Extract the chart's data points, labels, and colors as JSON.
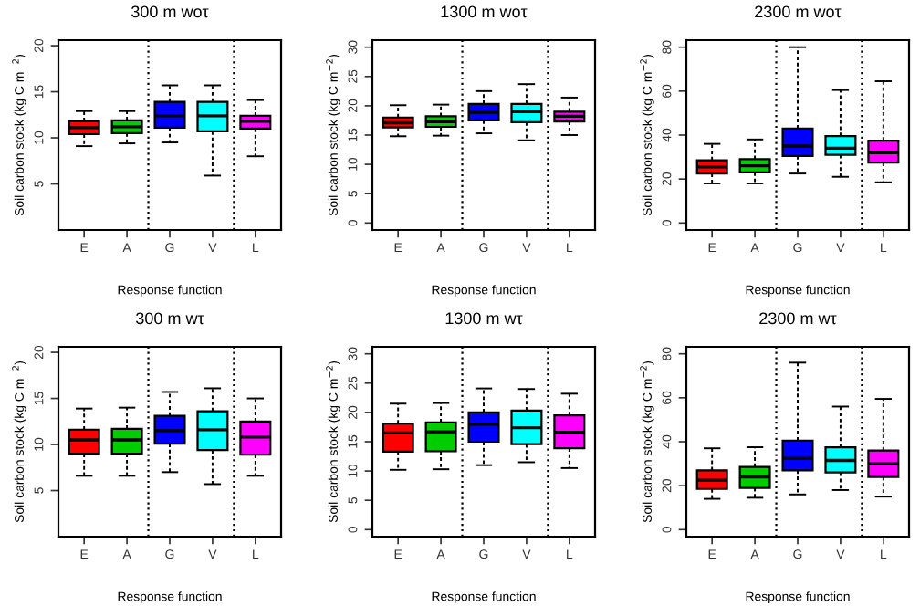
{
  "chart_data": [
    {
      "type": "box",
      "title": "300 m woτ",
      "xlabel": "Response function",
      "ylabel": "Soil carbon stock (kg C m$^{−2}$)",
      "categories": [
        "E",
        "A",
        "G",
        "V",
        "L"
      ],
      "colors": [
        "#ff0000",
        "#00cd00",
        "#0000ff",
        "#00ffff",
        "#ff00ff"
      ],
      "ylim": [
        0,
        20.6
      ],
      "yticks": [
        5,
        10,
        15,
        20
      ],
      "grid": false,
      "boxes": [
        {
          "low": 9.1,
          "q1": 10.4,
          "median": 11.1,
          "q3": 11.8,
          "high": 12.9
        },
        {
          "low": 9.4,
          "q1": 10.5,
          "median": 11.2,
          "q3": 11.9,
          "high": 12.9
        },
        {
          "low": 9.5,
          "q1": 11.1,
          "median": 12.4,
          "q3": 13.9,
          "high": 15.7
        },
        {
          "low": 5.9,
          "q1": 10.7,
          "median": 12.4,
          "q3": 13.9,
          "high": 15.7
        },
        {
          "low": 8.0,
          "q1": 11.0,
          "median": 11.8,
          "q3": 12.4,
          "high": 14.1
        }
      ]
    },
    {
      "type": "box",
      "title": "1300 m woτ",
      "xlabel": "Response function",
      "ylabel": "Soil carbon stock (kg C m$^{−2}$)",
      "categories": [
        "E",
        "A",
        "G",
        "V",
        "L"
      ],
      "colors": [
        "#ff0000",
        "#00cd00",
        "#0000ff",
        "#00ffff",
        "#ff00ff"
      ],
      "ylim": [
        -1.2,
        31.2
      ],
      "yticks": [
        0,
        5,
        10,
        15,
        20,
        25,
        30
      ],
      "grid": false,
      "boxes": [
        {
          "low": 14.8,
          "q1": 16.3,
          "median": 17.1,
          "q3": 18.0,
          "high": 20.1
        },
        {
          "low": 14.9,
          "q1": 16.4,
          "median": 17.3,
          "q3": 18.2,
          "high": 20.2
        },
        {
          "low": 15.3,
          "q1": 17.5,
          "median": 18.9,
          "q3": 20.3,
          "high": 22.5
        },
        {
          "low": 14.1,
          "q1": 17.2,
          "median": 19.0,
          "q3": 20.3,
          "high": 23.7
        },
        {
          "low": 15.0,
          "q1": 17.3,
          "median": 18.2,
          "q3": 19.0,
          "high": 21.4
        }
      ]
    },
    {
      "type": "box",
      "title": "2300 m woτ",
      "xlabel": "Response function",
      "ylabel": "Soil carbon stock (kg C m$^{−2}$)",
      "categories": [
        "E",
        "A",
        "G",
        "V",
        "L"
      ],
      "colors": [
        "#ff0000",
        "#00cd00",
        "#0000ff",
        "#00ffff",
        "#ff00ff"
      ],
      "ylim": [
        -3.2,
        83.2
      ],
      "yticks": [
        0,
        20,
        40,
        60,
        80
      ],
      "grid": false,
      "boxes": [
        {
          "low": 18,
          "q1": 22.5,
          "median": 25.5,
          "q3": 28.5,
          "high": 36
        },
        {
          "low": 18,
          "q1": 23,
          "median": 26,
          "q3": 29,
          "high": 38
        },
        {
          "low": 22.5,
          "q1": 30.5,
          "median": 35,
          "q3": 43,
          "high": 80
        },
        {
          "low": 21,
          "q1": 31,
          "median": 34,
          "q3": 39.5,
          "high": 60.5
        },
        {
          "low": 18.5,
          "q1": 27.5,
          "median": 32,
          "q3": 37.5,
          "high": 64.5
        }
      ]
    },
    {
      "type": "box",
      "title": "300 m wτ",
      "xlabel": "Response function",
      "ylabel": "Soil carbon stock (kg C m$^{−2}$)",
      "categories": [
        "E",
        "A",
        "G",
        "V",
        "L"
      ],
      "colors": [
        "#ff0000",
        "#00cd00",
        "#0000ff",
        "#00ffff",
        "#ff00ff"
      ],
      "ylim": [
        0,
        20.6
      ],
      "yticks": [
        5,
        10,
        15,
        20
      ],
      "grid": false,
      "boxes": [
        {
          "low": 6.6,
          "q1": 9.0,
          "median": 10.5,
          "q3": 11.6,
          "high": 13.9
        },
        {
          "low": 6.6,
          "q1": 9.0,
          "median": 10.5,
          "q3": 11.7,
          "high": 14.0
        },
        {
          "low": 7.0,
          "q1": 10.1,
          "median": 11.5,
          "q3": 13.1,
          "high": 15.7
        },
        {
          "low": 5.7,
          "q1": 9.4,
          "median": 11.6,
          "q3": 13.6,
          "high": 16.1
        },
        {
          "low": 6.6,
          "q1": 8.9,
          "median": 10.8,
          "q3": 12.5,
          "high": 15.0
        }
      ]
    },
    {
      "type": "box",
      "title": "1300 m wτ",
      "xlabel": "Response function",
      "ylabel": "Soil carbon stock (kg C m$^{−2}$)",
      "categories": [
        "E",
        "A",
        "G",
        "V",
        "L"
      ],
      "colors": [
        "#ff0000",
        "#00cd00",
        "#0000ff",
        "#00ffff",
        "#ff00ff"
      ],
      "ylim": [
        -1.2,
        31.2
      ],
      "yticks": [
        0,
        5,
        10,
        15,
        20,
        25,
        30
      ],
      "grid": false,
      "boxes": [
        {
          "low": 10.2,
          "q1": 13.3,
          "median": 16.5,
          "q3": 18.1,
          "high": 21.5
        },
        {
          "low": 10.3,
          "q1": 13.4,
          "median": 16.7,
          "q3": 18.3,
          "high": 21.6
        },
        {
          "low": 11.0,
          "q1": 15.0,
          "median": 18.0,
          "q3": 20.0,
          "high": 24.1
        },
        {
          "low": 11.5,
          "q1": 14.6,
          "median": 17.4,
          "q3": 20.3,
          "high": 24.0
        },
        {
          "low": 10.5,
          "q1": 13.9,
          "median": 16.6,
          "q3": 19.5,
          "high": 23.2
        }
      ]
    },
    {
      "type": "box",
      "title": "2300 m wτ",
      "xlabel": "Response function",
      "ylabel": "Soil carbon stock (kg C m$^{−2}$)",
      "categories": [
        "E",
        "A",
        "G",
        "V",
        "L"
      ],
      "colors": [
        "#ff0000",
        "#00cd00",
        "#0000ff",
        "#00ffff",
        "#ff00ff"
      ],
      "ylim": [
        -3.2,
        83.2
      ],
      "yticks": [
        0,
        20,
        40,
        60,
        80
      ],
      "grid": false,
      "boxes": [
        {
          "low": 14,
          "q1": 18.5,
          "median": 22.5,
          "q3": 27,
          "high": 37
        },
        {
          "low": 14.5,
          "q1": 19,
          "median": 24,
          "q3": 28.5,
          "high": 37.5
        },
        {
          "low": 16,
          "q1": 27,
          "median": 32.5,
          "q3": 40.5,
          "high": 76
        },
        {
          "low": 18,
          "q1": 26,
          "median": 31.5,
          "q3": 37.5,
          "high": 56
        },
        {
          "low": 15,
          "q1": 24,
          "median": 30,
          "q3": 36,
          "high": 59.5
        }
      ]
    }
  ]
}
